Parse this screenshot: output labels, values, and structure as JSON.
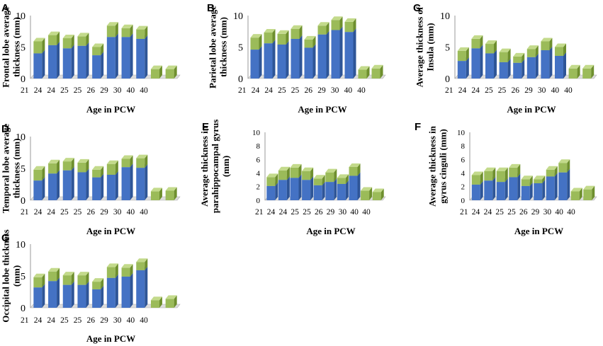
{
  "colors": {
    "lower_front": "#4472C4",
    "lower_side": "#2E5597",
    "lower_top": "#6F94D4",
    "upper_front": "#9BBB59",
    "upper_side": "#6E8F2E",
    "upper_top": "#C3DA8B"
  },
  "chart_data": [
    {
      "type": "bar",
      "stacked": true,
      "panel": "A",
      "title": "",
      "xlabel": "Age in PCW",
      "ylabel": "Frontal lobe average thickness (mm)",
      "ylabel_lines": [
        "Frontal lobe average",
        "thickness (mm)"
      ],
      "ylim": [
        0,
        10
      ],
      "yticks": [
        "0",
        "5",
        "10"
      ],
      "categories": [
        "21",
        "24",
        "24",
        "25",
        "25",
        "26",
        "29",
        "30",
        "40",
        "40"
      ],
      "series": [
        {
          "name": "lower",
          "values": [
            4.0,
            5.3,
            4.8,
            5.2,
            3.7,
            6.6,
            6.6,
            6.3,
            0,
            0
          ]
        },
        {
          "name": "upper",
          "values": [
            1.9,
            1.6,
            1.6,
            1.5,
            1.3,
            1.8,
            1.4,
            1.5,
            1.5,
            1.5
          ]
        }
      ]
    },
    {
      "type": "bar",
      "stacked": true,
      "panel": "B",
      "title": "",
      "xlabel": "Age in PCW",
      "ylabel": "Parietal lobe average thickness (mm)",
      "ylabel_lines": [
        "Parietal lobe average",
        "thickness (mm)"
      ],
      "ylim": [
        0,
        10
      ],
      "yticks": [
        "0",
        "5",
        "10"
      ],
      "categories": [
        "21",
        "24",
        "24",
        "25",
        "25",
        "26",
        "29",
        "30",
        "40",
        "40"
      ],
      "series": [
        {
          "name": "lower",
          "values": [
            4.6,
            5.6,
            5.4,
            6.3,
            4.9,
            7.0,
            7.7,
            7.4,
            0,
            0
          ]
        },
        {
          "name": "upper",
          "values": [
            1.9,
            1.7,
            1.7,
            1.6,
            1.3,
            1.4,
            1.6,
            1.6,
            1.4,
            1.6
          ]
        }
      ]
    },
    {
      "type": "bar",
      "stacked": true,
      "panel": "C",
      "title": "",
      "xlabel": "Age in PCW",
      "ylabel": "Average thickness of Insula (mm)",
      "ylabel_lines": [
        "Average thickness of",
        "Insula (mm)"
      ],
      "ylim": [
        0,
        10
      ],
      "yticks": [
        "0",
        "5",
        "10"
      ],
      "categories": [
        "21",
        "24",
        "24",
        "25",
        "25",
        "26",
        "29",
        "30",
        "40",
        "40"
      ],
      "series": [
        {
          "name": "lower",
          "values": [
            2.8,
            4.8,
            4.0,
            2.6,
            2.5,
            3.4,
            4.5,
            3.6,
            0,
            0
          ]
        },
        {
          "name": "upper",
          "values": [
            1.6,
            1.5,
            1.5,
            1.6,
            1.0,
            1.3,
            1.4,
            1.4,
            1.6,
            1.6
          ]
        }
      ]
    },
    {
      "type": "bar",
      "stacked": true,
      "panel": "D",
      "title": "",
      "xlabel": "Age in PCW",
      "ylabel": "Temporal lobe average thickness (mm)",
      "ylabel_lines": [
        "Temporal lobe average",
        "thickness (mm)"
      ],
      "ylim": [
        0,
        10
      ],
      "yticks": [
        "0",
        "5",
        "10"
      ],
      "categories": [
        "21",
        "24",
        "24",
        "25",
        "25",
        "26",
        "29",
        "30",
        "40",
        "40"
      ],
      "series": [
        {
          "name": "lower",
          "values": [
            3.1,
            4.2,
            4.7,
            4.4,
            3.6,
            4.0,
            5.2,
            5.1,
            0,
            0
          ]
        },
        {
          "name": "upper",
          "values": [
            1.7,
            1.6,
            1.4,
            1.5,
            1.2,
            1.7,
            1.3,
            1.5,
            1.4,
            1.5
          ]
        }
      ]
    },
    {
      "type": "bar",
      "stacked": true,
      "panel": "E",
      "title": "",
      "xlabel": "Age in PCW",
      "ylabel": "Average thickness in parahippocampal gyrus (mm)",
      "ylabel_lines": [
        "Average thickness in",
        "parahippocampal gyrus",
        "(mm)"
      ],
      "ylim": [
        0,
        10
      ],
      "yticks": [
        "0",
        "2",
        "4",
        "6",
        "8",
        "10"
      ],
      "categories": [
        "21",
        "24",
        "24",
        "25",
        "25",
        "26",
        "29",
        "30",
        "40",
        "40"
      ],
      "series": [
        {
          "name": "lower",
          "values": [
            2.1,
            3.0,
            3.3,
            3.0,
            2.2,
            2.7,
            2.4,
            3.6,
            0,
            0
          ]
        },
        {
          "name": "upper",
          "values": [
            1.3,
            1.4,
            1.5,
            1.3,
            1.0,
            1.4,
            0.9,
            1.3,
            1.4,
            1.2
          ]
        }
      ]
    },
    {
      "type": "bar",
      "stacked": true,
      "panel": "F",
      "title": "",
      "xlabel": "Age in PCW",
      "ylabel": "Average thickness in gyrus cinguli (mm)",
      "ylabel_lines": [
        "Average thickness in",
        "gyrus cinguli (mm)"
      ],
      "ylim": [
        0,
        10
      ],
      "yticks": [
        "0",
        "2",
        "4",
        "6",
        "8",
        "10"
      ],
      "categories": [
        "21",
        "24",
        "24",
        "25",
        "25",
        "26",
        "29",
        "30",
        "40",
        "40"
      ],
      "series": [
        {
          "name": "lower",
          "values": [
            2.3,
            2.9,
            2.7,
            3.4,
            2.1,
            2.5,
            3.5,
            4.1,
            0,
            0
          ]
        },
        {
          "name": "upper",
          "values": [
            1.4,
            1.4,
            1.6,
            1.4,
            1.0,
            0.6,
            1.0,
            1.4,
            1.3,
            1.6
          ]
        }
      ]
    },
    {
      "type": "bar",
      "stacked": true,
      "panel": "G",
      "title": "",
      "xlabel": "Age in PCW",
      "ylabel": "Occipital lobe thickness (mm)",
      "ylabel_lines": [
        "Occipital lobe thickness",
        "(mm)"
      ],
      "ylim": [
        0,
        10
      ],
      "yticks": [
        "0",
        "5",
        "10"
      ],
      "categories": [
        "21",
        "24",
        "24",
        "25",
        "25",
        "26",
        "29",
        "30",
        "40",
        "40"
      ],
      "series": [
        {
          "name": "lower",
          "values": [
            3.2,
            4.2,
            3.6,
            3.6,
            2.9,
            4.7,
            4.9,
            5.9,
            0,
            0
          ]
        },
        {
          "name": "upper",
          "values": [
            1.6,
            1.5,
            1.5,
            1.5,
            1.2,
            1.7,
            1.4,
            1.3,
            1.2,
            1.4
          ]
        }
      ]
    }
  ]
}
